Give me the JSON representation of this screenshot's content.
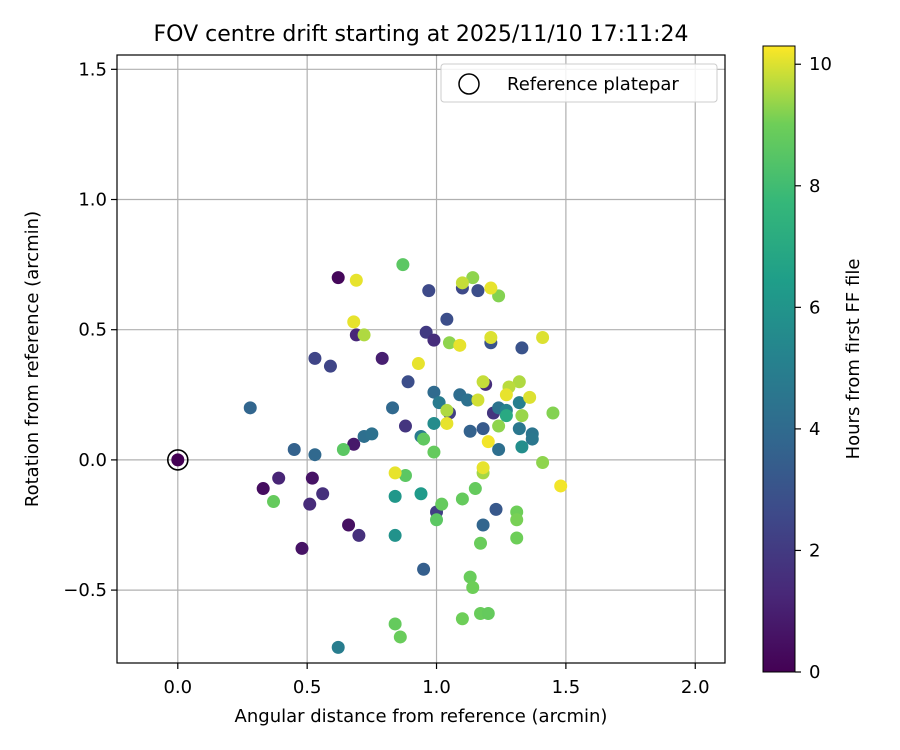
{
  "chart_data": {
    "type": "scatter",
    "title": "FOV centre drift starting at 2025/11/10 17:11:24",
    "xlabel": "Angular distance from reference (arcmin)",
    "ylabel": "Rotation from reference (arcmin)",
    "xlim": [
      -0.235,
      2.115
    ],
    "ylim": [
      -0.78,
      1.555
    ],
    "xticks": [
      0.0,
      0.5,
      1.0,
      1.5,
      2.0
    ],
    "xtick_labels": [
      "0.0",
      "0.5",
      "1.0",
      "1.5",
      "2.0"
    ],
    "yticks": [
      -0.5,
      0.0,
      0.5,
      1.0,
      1.5
    ],
    "ytick_labels": [
      "−0.5",
      "0.0",
      "0.5",
      "1.0",
      "1.5"
    ],
    "grid": true,
    "legend": {
      "label": "Reference platepar",
      "location": "top-right"
    },
    "reference_point": {
      "x": 0.0,
      "y": 0.0
    },
    "colorbar": {
      "label": "Hours from first FF file",
      "colormap": "viridis",
      "range": [
        0,
        10.3
      ],
      "ticks": [
        0,
        2,
        4,
        6,
        8,
        10
      ],
      "tick_labels": [
        "0",
        "2",
        "4",
        "6",
        "8",
        "10"
      ]
    },
    "points": [
      {
        "x": 0.0,
        "y": 0.0,
        "hours": 0.0
      },
      {
        "x": 0.62,
        "y": 0.7,
        "hours": 0.2
      },
      {
        "x": 0.33,
        "y": -0.11,
        "hours": 0.4
      },
      {
        "x": 0.48,
        "y": -0.34,
        "hours": 0.6
      },
      {
        "x": 0.52,
        "y": -0.07,
        "hours": 0.6
      },
      {
        "x": 0.66,
        "y": -0.25,
        "hours": 0.5
      },
      {
        "x": 0.68,
        "y": 0.06,
        "hours": 0.8
      },
      {
        "x": 0.39,
        "y": -0.07,
        "hours": 1.2
      },
      {
        "x": 0.51,
        "y": -0.17,
        "hours": 1.4
      },
      {
        "x": 0.56,
        "y": -0.13,
        "hours": 1.6
      },
      {
        "x": 0.7,
        "y": -0.29,
        "hours": 1.6
      },
      {
        "x": 0.79,
        "y": 0.39,
        "hours": 1.0
      },
      {
        "x": 0.69,
        "y": 0.48,
        "hours": 1.3
      },
      {
        "x": 0.88,
        "y": 0.13,
        "hours": 1.8
      },
      {
        "x": 0.96,
        "y": 0.49,
        "hours": 2.0
      },
      {
        "x": 0.99,
        "y": 0.46,
        "hours": 1.5
      },
      {
        "x": 1.0,
        "y": -0.2,
        "hours": 2.2
      },
      {
        "x": 1.19,
        "y": 0.29,
        "hours": 1.5
      },
      {
        "x": 1.22,
        "y": 0.18,
        "hours": 1.8
      },
      {
        "x": 1.05,
        "y": 0.18,
        "hours": 2.2
      },
      {
        "x": 0.53,
        "y": 0.39,
        "hours": 2.4
      },
      {
        "x": 0.59,
        "y": 0.36,
        "hours": 2.4
      },
      {
        "x": 0.97,
        "y": 0.65,
        "hours": 2.6
      },
      {
        "x": 1.1,
        "y": 0.66,
        "hours": 2.6
      },
      {
        "x": 1.16,
        "y": 0.65,
        "hours": 2.8
      },
      {
        "x": 1.04,
        "y": 0.54,
        "hours": 2.8
      },
      {
        "x": 0.89,
        "y": 0.3,
        "hours": 2.8
      },
      {
        "x": 1.21,
        "y": 0.45,
        "hours": 3.0
      },
      {
        "x": 1.33,
        "y": 0.43,
        "hours": 3.0
      },
      {
        "x": 1.23,
        "y": -0.19,
        "hours": 3.2
      },
      {
        "x": 1.18,
        "y": 0.12,
        "hours": 3.3
      },
      {
        "x": 1.13,
        "y": 0.11,
        "hours": 3.6
      },
      {
        "x": 0.95,
        "y": -0.42,
        "hours": 3.5
      },
      {
        "x": 1.18,
        "y": -0.25,
        "hours": 3.8
      },
      {
        "x": 0.45,
        "y": 0.04,
        "hours": 3.6
      },
      {
        "x": 0.28,
        "y": 0.2,
        "hours": 3.8
      },
      {
        "x": 0.53,
        "y": 0.02,
        "hours": 3.9
      },
      {
        "x": 0.83,
        "y": 0.2,
        "hours": 3.9
      },
      {
        "x": 0.72,
        "y": 0.09,
        "hours": 4.2
      },
      {
        "x": 0.75,
        "y": 0.1,
        "hours": 4.3
      },
      {
        "x": 0.99,
        "y": 0.26,
        "hours": 4.0
      },
      {
        "x": 1.09,
        "y": 0.25,
        "hours": 4.1
      },
      {
        "x": 1.12,
        "y": 0.23,
        "hours": 4.3
      },
      {
        "x": 1.24,
        "y": 0.2,
        "hours": 4.4
      },
      {
        "x": 1.24,
        "y": 0.04,
        "hours": 4.2
      },
      {
        "x": 1.32,
        "y": 0.12,
        "hours": 4.6
      },
      {
        "x": 1.37,
        "y": 0.1,
        "hours": 4.5
      },
      {
        "x": 1.37,
        "y": 0.08,
        "hours": 4.6
      },
      {
        "x": 1.01,
        "y": 0.22,
        "hours": 4.8
      },
      {
        "x": 0.94,
        "y": 0.09,
        "hours": 4.8
      },
      {
        "x": 0.62,
        "y": -0.72,
        "hours": 4.9
      },
      {
        "x": 1.32,
        "y": 0.22,
        "hours": 5.0
      },
      {
        "x": 1.27,
        "y": 0.19,
        "hours": 5.2
      },
      {
        "x": 0.99,
        "y": 0.14,
        "hours": 5.6
      },
      {
        "x": 1.33,
        "y": 0.05,
        "hours": 5.7
      },
      {
        "x": 0.84,
        "y": -0.29,
        "hours": 5.9
      },
      {
        "x": 0.84,
        "y": -0.14,
        "hours": 6.1
      },
      {
        "x": 0.94,
        "y": -0.13,
        "hours": 6.3
      },
      {
        "x": 1.27,
        "y": 0.17,
        "hours": 7.0
      },
      {
        "x": 0.64,
        "y": 0.04,
        "hours": 8.6
      },
      {
        "x": 0.37,
        "y": -0.16,
        "hours": 8.8
      },
      {
        "x": 0.87,
        "y": 0.75,
        "hours": 8.6
      },
      {
        "x": 0.88,
        "y": -0.06,
        "hours": 8.6
      },
      {
        "x": 0.95,
        "y": 0.08,
        "hours": 8.7
      },
      {
        "x": 0.99,
        "y": 0.03,
        "hours": 8.8
      },
      {
        "x": 1.0,
        "y": -0.23,
        "hours": 8.6
      },
      {
        "x": 1.02,
        "y": -0.17,
        "hours": 8.8
      },
      {
        "x": 1.1,
        "y": -0.15,
        "hours": 8.8
      },
      {
        "x": 1.15,
        "y": -0.11,
        "hours": 8.8
      },
      {
        "x": 1.17,
        "y": -0.32,
        "hours": 8.9
      },
      {
        "x": 1.13,
        "y": -0.45,
        "hours": 8.9
      },
      {
        "x": 1.14,
        "y": -0.49,
        "hours": 9.0
      },
      {
        "x": 1.17,
        "y": -0.59,
        "hours": 8.9
      },
      {
        "x": 1.2,
        "y": -0.59,
        "hours": 8.8
      },
      {
        "x": 1.1,
        "y": -0.61,
        "hours": 9.0
      },
      {
        "x": 0.84,
        "y": -0.63,
        "hours": 8.8
      },
      {
        "x": 0.86,
        "y": -0.68,
        "hours": 8.9
      },
      {
        "x": 1.31,
        "y": -0.2,
        "hours": 9.0
      },
      {
        "x": 1.31,
        "y": -0.23,
        "hours": 9.1
      },
      {
        "x": 1.31,
        "y": -0.3,
        "hours": 9.0
      },
      {
        "x": 1.14,
        "y": 0.7,
        "hours": 9.3
      },
      {
        "x": 1.24,
        "y": 0.63,
        "hours": 9.2
      },
      {
        "x": 1.05,
        "y": 0.45,
        "hours": 9.3
      },
      {
        "x": 1.24,
        "y": 0.13,
        "hours": 9.3
      },
      {
        "x": 1.33,
        "y": 0.17,
        "hours": 9.4
      },
      {
        "x": 1.45,
        "y": 0.18,
        "hours": 9.2
      },
      {
        "x": 1.41,
        "y": -0.01,
        "hours": 9.3
      },
      {
        "x": 1.18,
        "y": -0.05,
        "hours": 9.5
      },
      {
        "x": 1.32,
        "y": 0.3,
        "hours": 9.6
      },
      {
        "x": 1.28,
        "y": 0.28,
        "hours": 9.7
      },
      {
        "x": 1.18,
        "y": 0.3,
        "hours": 9.8
      },
      {
        "x": 1.16,
        "y": 0.23,
        "hours": 9.9
      },
      {
        "x": 1.04,
        "y": 0.19,
        "hours": 9.6
      },
      {
        "x": 0.72,
        "y": 0.48,
        "hours": 9.6
      },
      {
        "x": 0.69,
        "y": 0.69,
        "hours": 10.1
      },
      {
        "x": 0.68,
        "y": 0.53,
        "hours": 10.1
      },
      {
        "x": 0.93,
        "y": 0.37,
        "hours": 10.1
      },
      {
        "x": 1.09,
        "y": 0.44,
        "hours": 10.1
      },
      {
        "x": 1.1,
        "y": 0.68,
        "hours": 9.8
      },
      {
        "x": 1.21,
        "y": 0.66,
        "hours": 10.1
      },
      {
        "x": 1.21,
        "y": 0.47,
        "hours": 10.0
      },
      {
        "x": 1.41,
        "y": 0.47,
        "hours": 10.0
      },
      {
        "x": 1.36,
        "y": 0.24,
        "hours": 10.0
      },
      {
        "x": 1.27,
        "y": 0.25,
        "hours": 10.1
      },
      {
        "x": 1.2,
        "y": 0.07,
        "hours": 10.2
      },
      {
        "x": 1.18,
        "y": -0.03,
        "hours": 10.1
      },
      {
        "x": 1.04,
        "y": 0.14,
        "hours": 10.1
      },
      {
        "x": 0.84,
        "y": -0.05,
        "hours": 10.1
      },
      {
        "x": 1.48,
        "y": -0.1,
        "hours": 10.2
      }
    ]
  }
}
